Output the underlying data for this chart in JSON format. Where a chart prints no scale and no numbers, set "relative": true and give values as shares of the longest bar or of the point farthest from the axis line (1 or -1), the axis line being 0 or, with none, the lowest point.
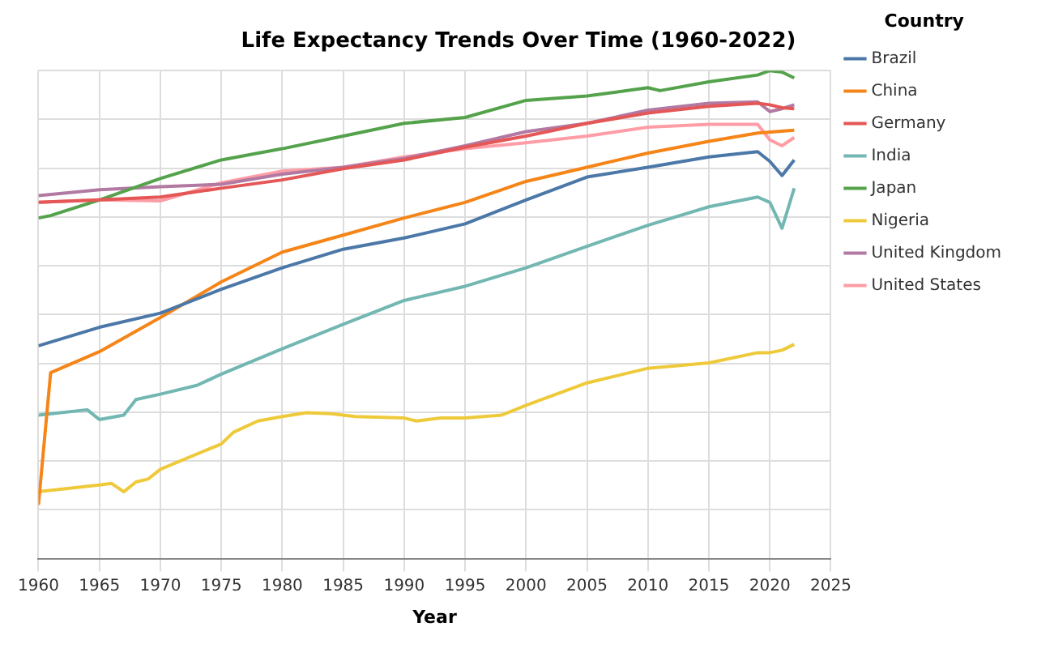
{
  "chart_data": {
    "type": "line",
    "title": "Life Expectancy Trends Over Time (1960-2022)",
    "xlabel": "Year",
    "legend_title": "Country",
    "legend": "top right",
    "grid": true,
    "relative": true,
    "marker": "none",
    "line_style": "solid",
    "xlim": [
      1960,
      2025
    ],
    "xticks": [
      1960,
      1965,
      1970,
      1975,
      1980,
      1985,
      1990,
      1995,
      2000,
      2005,
      2010,
      2015,
      2020,
      2025
    ],
    "series": [
      {
        "name": "Brazil",
        "color": "#4c78a8",
        "x": [
          1960,
          1965,
          1970,
          1975,
          1980,
          1985,
          1990,
          1995,
          2000,
          2005,
          2010,
          2015,
          2019,
          2020,
          2021,
          2022
        ],
        "values": [
          0.436,
          0.474,
          0.503,
          0.552,
          0.596,
          0.634,
          0.657,
          0.686,
          0.735,
          0.782,
          0.802,
          0.823,
          0.834,
          0.814,
          0.785,
          0.817
        ]
      },
      {
        "name": "China",
        "color": "#f58518",
        "x": [
          1960,
          1961,
          1965,
          1970,
          1975,
          1980,
          1985,
          1990,
          1995,
          2000,
          2005,
          2010,
          2015,
          2019,
          2022
        ],
        "values": [
          0.11,
          0.381,
          0.424,
          0.494,
          0.567,
          0.628,
          0.663,
          0.698,
          0.73,
          0.773,
          0.802,
          0.831,
          0.855,
          0.872,
          0.878
        ]
      },
      {
        "name": "Germany",
        "color": "#e45756",
        "x": [
          1960,
          1965,
          1970,
          1975,
          1980,
          1985,
          1990,
          1995,
          2000,
          2005,
          2010,
          2015,
          2019,
          2020,
          2021,
          2022
        ],
        "values": [
          0.73,
          0.735,
          0.741,
          0.759,
          0.776,
          0.799,
          0.817,
          0.843,
          0.866,
          0.892,
          0.913,
          0.927,
          0.933,
          0.93,
          0.924,
          0.922
        ]
      },
      {
        "name": "India",
        "color": "#72b7b2",
        "x": [
          1960,
          1964,
          1965,
          1967,
          1968,
          1970,
          1973,
          1975,
          1980,
          1985,
          1990,
          1995,
          2000,
          2005,
          2010,
          2015,
          2019,
          2020,
          2021,
          2022
        ],
        "values": [
          0.294,
          0.305,
          0.285,
          0.294,
          0.326,
          0.337,
          0.355,
          0.378,
          0.43,
          0.48,
          0.529,
          0.558,
          0.596,
          0.64,
          0.683,
          0.721,
          0.741,
          0.73,
          0.677,
          0.759
        ]
      },
      {
        "name": "Japan",
        "color": "#54a24b",
        "x": [
          1960,
          1961,
          1965,
          1970,
          1975,
          1980,
          1985,
          1990,
          1995,
          2000,
          2005,
          2010,
          2011,
          2015,
          2019,
          2020,
          2021,
          2022
        ],
        "values": [
          0.698,
          0.703,
          0.735,
          0.779,
          0.817,
          0.84,
          0.866,
          0.892,
          0.904,
          0.939,
          0.948,
          0.965,
          0.959,
          0.977,
          0.991,
          1.0,
          0.997,
          0.985
        ]
      },
      {
        "name": "Nigeria",
        "color": "#eeca3b",
        "x": [
          1960,
          1965,
          1966,
          1967,
          1968,
          1969,
          1970,
          1975,
          1976,
          1978,
          1980,
          1982,
          1984,
          1986,
          1990,
          1991,
          1993,
          1995,
          1998,
          2000,
          2005,
          2008,
          2010,
          2015,
          2019,
          2020,
          2021,
          2022
        ],
        "values": [
          0.137,
          0.151,
          0.154,
          0.137,
          0.157,
          0.163,
          0.183,
          0.235,
          0.259,
          0.282,
          0.291,
          0.299,
          0.297,
          0.291,
          0.288,
          0.282,
          0.288,
          0.288,
          0.294,
          0.314,
          0.36,
          0.378,
          0.39,
          0.401,
          0.422,
          0.422,
          0.427,
          0.439
        ]
      },
      {
        "name": "United Kingdom",
        "color": "#b279a2",
        "x": [
          1960,
          1965,
          1970,
          1975,
          1980,
          1985,
          1990,
          1995,
          2000,
          2005,
          2010,
          2015,
          2019,
          2020,
          2021,
          2022
        ],
        "values": [
          0.744,
          0.756,
          0.762,
          0.767,
          0.788,
          0.802,
          0.82,
          0.846,
          0.875,
          0.892,
          0.919,
          0.933,
          0.936,
          0.916,
          0.922,
          0.93
        ]
      },
      {
        "name": "United States",
        "color": "#ff9da6",
        "x": [
          1960,
          1965,
          1970,
          1975,
          1980,
          1985,
          1990,
          1995,
          2000,
          2005,
          2010,
          2015,
          2019,
          2020,
          2021,
          2022
        ],
        "values": [
          0.73,
          0.735,
          0.733,
          0.77,
          0.794,
          0.802,
          0.823,
          0.84,
          0.852,
          0.866,
          0.884,
          0.89,
          0.89,
          0.858,
          0.846,
          0.863
        ]
      }
    ]
  }
}
